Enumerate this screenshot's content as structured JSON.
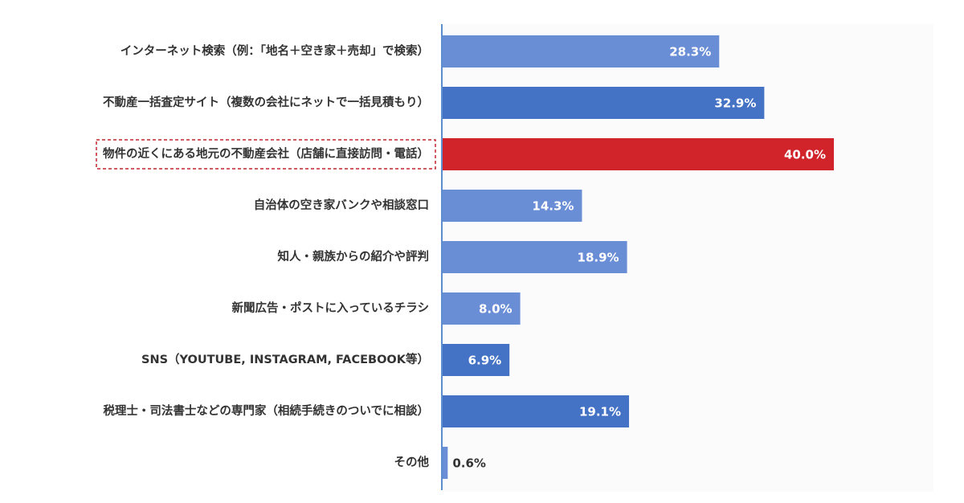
{
  "chart_data": {
    "type": "bar",
    "orientation": "horizontal",
    "categories": [
      "インターネット検索（例：「地名＋空き家＋売却」で検索）",
      "不動産一括査定サイト（複数の会社にネットで一括見積もり）",
      "物件の近くにある地元の不動産会社（店舗に直接訪問・電話）",
      "自治体の空き家バンクや相談窓口",
      "知人・親族からの紹介や評判",
      "新聞広告・ポストに入っているチラシ",
      "SNS（YOUTUBE, INSTAGRAM, FACEBOOK等）",
      "税理士・司法書士などの専門家（相続手続きのついでに相談）",
      "その他"
    ],
    "values": [
      28.3,
      32.9,
      40.0,
      14.3,
      18.9,
      8.0,
      6.9,
      19.1,
      0.6
    ],
    "value_labels": [
      "28.3%",
      "32.9%",
      "40.0%",
      "14.3%",
      "18.9%",
      "8.0%",
      "6.9%",
      "19.1%",
      "0.6%"
    ],
    "colors": [
      "#6a8ed6",
      "#4472c4",
      "#d0232a",
      "#6a8ed6",
      "#6a8ed6",
      "#6a8ed6",
      "#4472c4",
      "#4472c4",
      "#6a8ed6"
    ],
    "highlight_index": 2,
    "xlim": [
      0,
      50
    ]
  }
}
